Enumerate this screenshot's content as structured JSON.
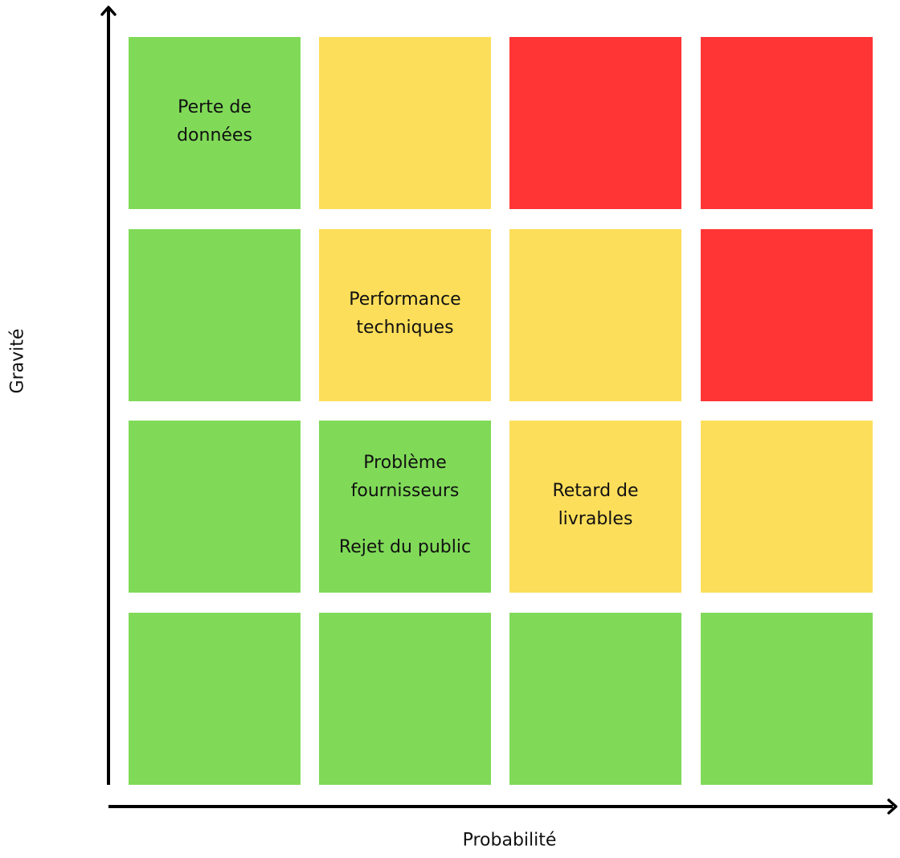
{
  "axes": {
    "y_label": "Gravité",
    "x_label": "Probabilité"
  },
  "colors": {
    "green": "#80da58",
    "yellow": "#fdde5a",
    "red": "#ff3434"
  },
  "matrix": {
    "rows": [
      [
        {
          "color": "green",
          "labels": [
            "Perte de\ndonnées"
          ]
        },
        {
          "color": "yellow",
          "labels": []
        },
        {
          "color": "red",
          "labels": []
        },
        {
          "color": "red",
          "labels": []
        }
      ],
      [
        {
          "color": "green",
          "labels": []
        },
        {
          "color": "yellow",
          "labels": [
            "Performance\ntechniques"
          ]
        },
        {
          "color": "yellow",
          "labels": []
        },
        {
          "color": "red",
          "labels": []
        }
      ],
      [
        {
          "color": "green",
          "labels": []
        },
        {
          "color": "green",
          "labels": [
            "Problème\nfournisseurs",
            "Rejet du public"
          ]
        },
        {
          "color": "yellow",
          "labels": [
            "Retard de\nlivrables"
          ]
        },
        {
          "color": "yellow",
          "labels": []
        }
      ],
      [
        {
          "color": "green",
          "labels": []
        },
        {
          "color": "green",
          "labels": []
        },
        {
          "color": "green",
          "labels": []
        },
        {
          "color": "green",
          "labels": []
        }
      ]
    ]
  }
}
